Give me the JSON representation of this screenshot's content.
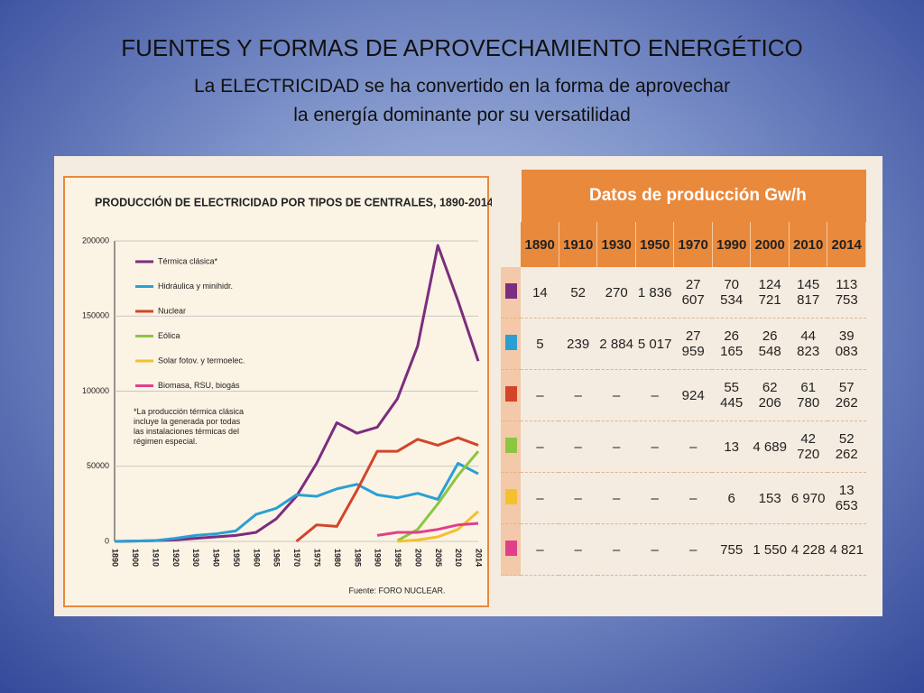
{
  "slide": {
    "title": "FUENTES Y FORMAS DE APROVECHAMIENTO ENERGÉTICO",
    "subtitle": "La ELECTRICIDAD se ha convertido en la forma de aprovechar la energía dominante por su versatilidad"
  },
  "chart_data": {
    "type": "line",
    "title": "PRODUCCIÓN DE ELECTRICIDAD POR TIPOS DE CENTRALES, 1890-2014",
    "categories": [
      "1890",
      "1900",
      "1910",
      "1920",
      "1930",
      "1940",
      "1950",
      "1960",
      "1965",
      "1970",
      "1975",
      "1980",
      "1985",
      "1990",
      "1995",
      "2000",
      "2005",
      "2010",
      "2014"
    ],
    "series": [
      {
        "name": "Térmica clásica*",
        "color": "#7b2d7e",
        "values": [
          0,
          200,
          500,
          1000,
          2000,
          3000,
          4000,
          6000,
          15000,
          30000,
          52000,
          79000,
          72000,
          76000,
          95000,
          130000,
          197000,
          160000,
          120000
        ]
      },
      {
        "name": "Hidráulica y minihidr.",
        "color": "#2b9fd4",
        "values": [
          0,
          200,
          500,
          2000,
          4000,
          5000,
          7000,
          18000,
          22000,
          31000,
          30000,
          35000,
          38000,
          31000,
          29000,
          32000,
          28000,
          52000,
          45000
        ]
      },
      {
        "name": "Nuclear",
        "color": "#d2452a",
        "values": [
          null,
          null,
          null,
          null,
          null,
          null,
          null,
          null,
          null,
          0,
          11000,
          10000,
          34000,
          60000,
          60000,
          68000,
          64000,
          69000,
          64000
        ]
      },
      {
        "name": "Eólica",
        "color": "#8cc63f",
        "values": [
          null,
          null,
          null,
          null,
          null,
          null,
          null,
          null,
          null,
          null,
          null,
          null,
          null,
          null,
          500,
          8000,
          25000,
          44000,
          60000
        ]
      },
      {
        "name": "Solar fotov. y termoelec.",
        "color": "#f2c12e",
        "values": [
          null,
          null,
          null,
          null,
          null,
          null,
          null,
          null,
          null,
          null,
          null,
          null,
          null,
          null,
          0,
          1000,
          3000,
          8000,
          20000
        ]
      },
      {
        "name": "Biomasa, RSU, biogás",
        "color": "#e0408a",
        "values": [
          null,
          null,
          null,
          null,
          null,
          null,
          null,
          null,
          null,
          null,
          null,
          null,
          null,
          4000,
          6000,
          6000,
          8000,
          11000,
          12000
        ]
      }
    ],
    "ylim": [
      0,
      200000
    ],
    "yticks": [
      0,
      50000,
      100000,
      150000,
      200000
    ],
    "grid": true,
    "note": "*La producción térmica clásica incluye la generada por todas las instalaciones térmicas del régimen especial.",
    "source": "Fuente: FORO NUCLEAR."
  },
  "table": {
    "title": "Datos de producción Gw/h",
    "columns": [
      "1890",
      "1910",
      "1930",
      "1950",
      "1970",
      "1990",
      "2000",
      "2010",
      "2014"
    ],
    "rows": [
      {
        "color": "#7b2d7e",
        "cells": [
          "14",
          "52",
          "270",
          "1 836",
          "27 607",
          "70 534",
          "124 721",
          "145 817",
          "113 753"
        ]
      },
      {
        "color": "#2b9fd4",
        "cells": [
          "5",
          "239",
          "2 884",
          "5 017",
          "27 959",
          "26 165",
          "26 548",
          "44 823",
          "39 083"
        ]
      },
      {
        "color": "#d2452a",
        "cells": [
          "–",
          "–",
          "–",
          "–",
          "924",
          "55 445",
          "62 206",
          "61 780",
          "57 262"
        ]
      },
      {
        "color": "#8cc63f",
        "cells": [
          "–",
          "–",
          "–",
          "–",
          "–",
          "13",
          "4 689",
          "42 720",
          "52 262"
        ]
      },
      {
        "color": "#f2c12e",
        "cells": [
          "–",
          "–",
          "–",
          "–",
          "–",
          "6",
          "153",
          "6 970",
          "13 653"
        ]
      },
      {
        "color": "#e0408a",
        "cells": [
          "–",
          "–",
          "–",
          "–",
          "–",
          "755",
          "1 550",
          "4 228",
          "4 821"
        ]
      }
    ]
  }
}
